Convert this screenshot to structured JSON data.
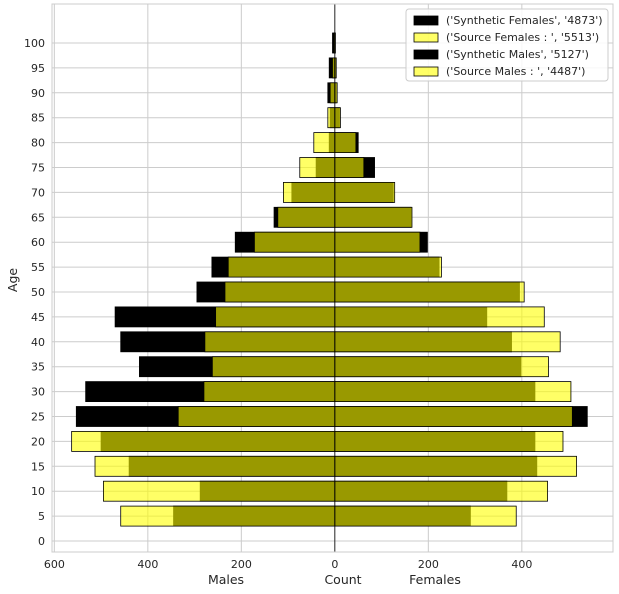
{
  "chart_data": {
    "type": "bar",
    "orientation": "horizontal-population-pyramid",
    "ylabel": "Age",
    "xlabel": "Count",
    "xlabel_left": "Males",
    "xlabel_right": "Females",
    "xlim": [
      -605,
      595
    ],
    "xticks": [
      -600,
      -400,
      -200,
      0,
      200,
      400
    ],
    "xtick_labels": [
      "600",
      "400",
      "200",
      "0",
      "200",
      "400"
    ],
    "categories": [
      "0",
      "5",
      "10",
      "15",
      "20",
      "25",
      "30",
      "35",
      "40",
      "45",
      "50",
      "55",
      "60",
      "65",
      "70",
      "75",
      "80",
      "85",
      "90",
      "95",
      "100"
    ],
    "grid": true,
    "legend_position": "top-right",
    "colors": {
      "synthetic": "#000000",
      "source": "#ffff00",
      "overlap": "#999900",
      "edge": "#000000",
      "grid": "#cccccc",
      "frame": "#cccccc"
    },
    "series": [
      {
        "name": "('Synthetic Females', '4873')",
        "side": "right",
        "kind": "synthetic",
        "values": [
          0,
          290,
          368,
          432,
          428,
          540,
          428,
          398,
          378,
          325,
          395,
          223,
          198,
          163,
          125,
          85,
          50,
          10,
          3,
          2,
          1
        ]
      },
      {
        "name": "('Source Females : ', '5513')",
        "side": "right",
        "kind": "source",
        "values": [
          0,
          388,
          455,
          517,
          488,
          508,
          505,
          457,
          482,
          448,
          405,
          228,
          182,
          165,
          128,
          62,
          45,
          12,
          5,
          3,
          1
        ]
      },
      {
        "name": "('Synthetic Males', '5127')",
        "side": "left",
        "kind": "synthetic",
        "values": [
          0,
          345,
          288,
          440,
          500,
          553,
          533,
          418,
          458,
          470,
          295,
          263,
          213,
          130,
          92,
          40,
          12,
          10,
          15,
          12,
          5
        ]
      },
      {
        "name": "('Source Males : ', '4487')",
        "side": "left",
        "kind": "source",
        "values": [
          0,
          458,
          495,
          513,
          563,
          335,
          280,
          262,
          278,
          255,
          235,
          228,
          172,
          122,
          110,
          75,
          45,
          15,
          10,
          5,
          2
        ]
      }
    ]
  }
}
